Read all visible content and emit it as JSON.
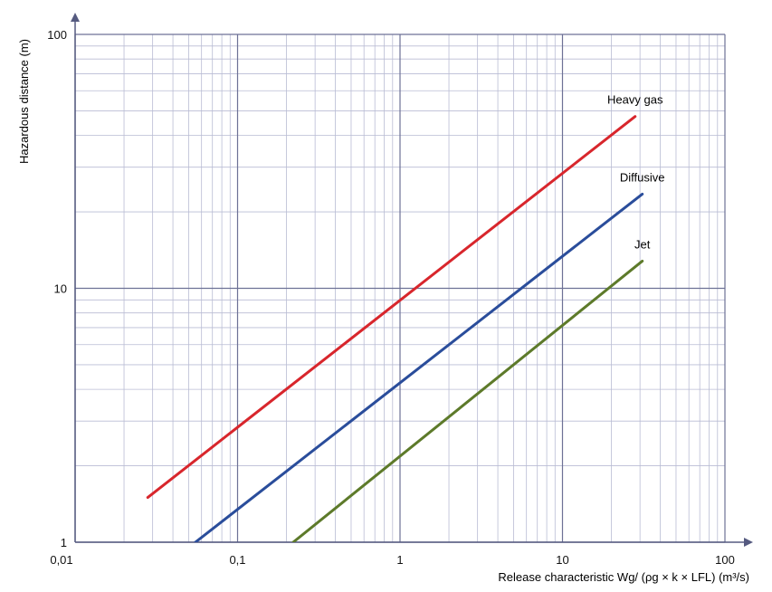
{
  "chart_data": {
    "type": "line",
    "x_scale": "log",
    "y_scale": "log",
    "xlim": [
      0.01,
      100
    ],
    "ylim": [
      1,
      100
    ],
    "grid": true,
    "xlabel": "Release characteristic Wg/ (ρg × k × LFL)   (m³/s)",
    "ylabel": "Hazardous distance   (m)",
    "x_ticks": [
      "0,01",
      "0,1",
      "1",
      "10",
      "100"
    ],
    "y_ticks": [
      "1",
      "10",
      "100"
    ],
    "series": [
      {
        "name": "Heavy gas",
        "color": "#d8262c",
        "x": [
          0.028,
          28
        ],
        "y": [
          1.5,
          47.5
        ]
      },
      {
        "name": "Diffusive",
        "color": "#2a4d9b",
        "x": [
          0.055,
          31
        ],
        "y": [
          1.0,
          23.5
        ]
      },
      {
        "name": "Jet",
        "color": "#5d7a2a",
        "x": [
          0.22,
          31
        ],
        "y": [
          1.0,
          12.8
        ]
      }
    ]
  }
}
